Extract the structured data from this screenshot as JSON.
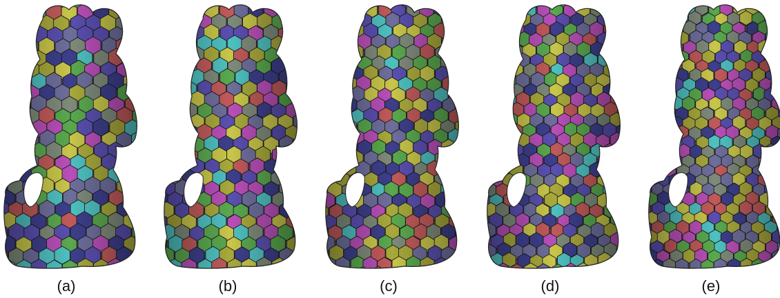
{
  "figure": {
    "panels": [
      {
        "label": "(a)"
      },
      {
        "label": "(b)"
      },
      {
        "label": "(c)"
      },
      {
        "label": "(d)"
      },
      {
        "label": "(e)"
      }
    ],
    "palette": [
      "#c8c64a",
      "#5a4fb0",
      "#4fc0c0",
      "#c05a5a",
      "#b84fb8",
      "#5aa84f",
      "#7e8a7a",
      "#3d3f8c",
      "#a8a83c",
      "#6e6e9c"
    ]
  }
}
